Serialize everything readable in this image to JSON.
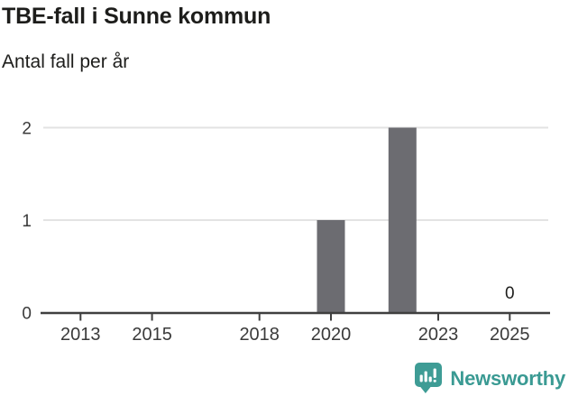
{
  "header": {
    "title": "TBE-fall i Sunne kommun",
    "subtitle": "Antal fall per år"
  },
  "chart_data": {
    "type": "bar",
    "title": "TBE-fall i Sunne kommun",
    "subtitle": "Antal fall per år",
    "categories": [
      2012,
      2013,
      2014,
      2015,
      2016,
      2017,
      2018,
      2019,
      2020,
      2021,
      2022,
      2023,
      2024,
      2025
    ],
    "values": [
      0,
      0,
      0,
      0,
      0,
      0,
      0,
      0,
      1,
      0,
      2,
      0,
      0,
      0
    ],
    "xlabel": "",
    "ylabel": "Antal fall per år",
    "ylim": [
      0,
      2
    ],
    "yticks": [
      0,
      1,
      2
    ],
    "xtick_labels": [
      2013,
      2015,
      2018,
      2020,
      2023,
      2025
    ],
    "grid": "horizontal",
    "legend": "none",
    "bar_color": "#6C6C71",
    "gridline_color": "#E3E3E3",
    "axis_color": "#3F3F3F",
    "tick_label_color": "#3A3A3A",
    "value_label_color": "#1D1D1B",
    "last_value_label": {
      "x": 2025,
      "y": 0,
      "text": "0"
    }
  },
  "footer": {
    "brand": "Newsworthy",
    "brand_color": "#3A9A93",
    "icon": "newsworthy-speech-bubble-barchart-icon"
  }
}
